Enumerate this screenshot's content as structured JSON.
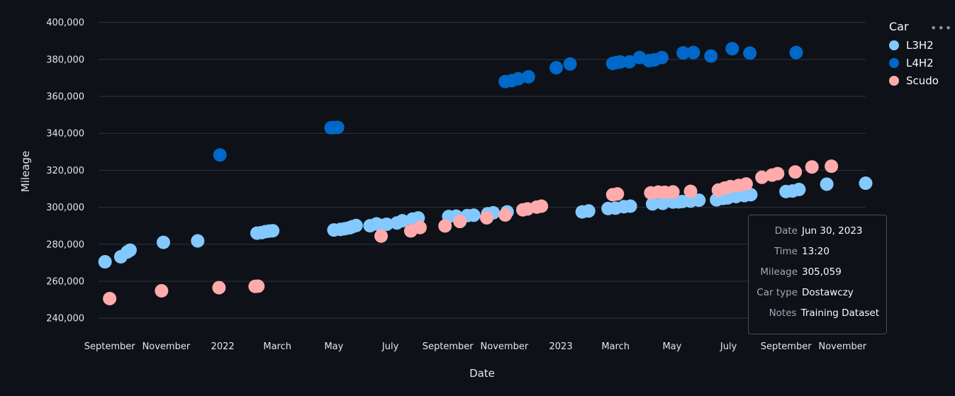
{
  "chart_data": {
    "type": "scatter",
    "xlabel": "Date",
    "ylabel": "Mileage",
    "ylim": [
      232000,
      406000
    ],
    "y_ticks": [
      240000,
      260000,
      280000,
      300000,
      320000,
      340000,
      360000,
      380000,
      400000
    ],
    "y_tick_labels": [
      "240,000",
      "260,000",
      "280,000",
      "300,000",
      "320,000",
      "340,000",
      "360,000",
      "380,000",
      "400,000"
    ],
    "x_range": [
      "2021-08-20",
      "2023-11-26"
    ],
    "x_ticks": [
      {
        "date": "2021-09-01",
        "label": "September"
      },
      {
        "date": "2021-11-01",
        "label": "November"
      },
      {
        "date": "2022-01-01",
        "label": "2022"
      },
      {
        "date": "2022-03-01",
        "label": "March"
      },
      {
        "date": "2022-05-01",
        "label": "May"
      },
      {
        "date": "2022-07-01",
        "label": "July"
      },
      {
        "date": "2022-09-01",
        "label": "September"
      },
      {
        "date": "2022-11-01",
        "label": "November"
      },
      {
        "date": "2023-01-01",
        "label": "2023"
      },
      {
        "date": "2023-03-01",
        "label": "March"
      },
      {
        "date": "2023-05-01",
        "label": "May"
      },
      {
        "date": "2023-07-01",
        "label": "July"
      },
      {
        "date": "2023-09-01",
        "label": "September"
      },
      {
        "date": "2023-11-01",
        "label": "November"
      }
    ],
    "grid": true,
    "legend_title": "Car",
    "legend_position": "top-right",
    "series": [
      {
        "name": "L3H2",
        "color": "#83c9ff",
        "points": [
          [
            "2021-08-27",
            270500
          ],
          [
            "2021-09-13",
            273200
          ],
          [
            "2021-09-20",
            275800
          ],
          [
            "2021-09-23",
            276800
          ],
          [
            "2021-10-29",
            281000
          ],
          [
            "2021-12-05",
            281800
          ],
          [
            "2022-02-07",
            286000
          ],
          [
            "2022-02-12",
            286300
          ],
          [
            "2022-02-16",
            286800
          ],
          [
            "2022-02-20",
            287100
          ],
          [
            "2022-02-24",
            287300
          ],
          [
            "2022-05-01",
            287700
          ],
          [
            "2022-05-08",
            288000
          ],
          [
            "2022-05-13",
            288400
          ],
          [
            "2022-05-18",
            288900
          ],
          [
            "2022-05-21",
            289500
          ],
          [
            "2022-05-25",
            290100
          ],
          [
            "2022-06-09",
            290000
          ],
          [
            "2022-06-16",
            291000
          ],
          [
            "2022-06-20",
            290200
          ],
          [
            "2022-06-27",
            290800
          ],
          [
            "2022-07-08",
            291500
          ],
          [
            "2022-07-14",
            292700
          ],
          [
            "2022-07-25",
            293600
          ],
          [
            "2022-07-31",
            294200
          ],
          [
            "2022-09-02",
            295000
          ],
          [
            "2022-09-10",
            295200
          ],
          [
            "2022-09-22",
            295500
          ],
          [
            "2022-09-29",
            295700
          ],
          [
            "2022-10-14",
            296500
          ],
          [
            "2022-10-20",
            297000
          ],
          [
            "2022-11-04",
            297500
          ],
          [
            "2023-01-24",
            297500
          ],
          [
            "2023-01-31",
            298000
          ],
          [
            "2023-02-21",
            299300
          ],
          [
            "2023-03-01",
            299500
          ],
          [
            "2023-03-10",
            300300
          ],
          [
            "2023-03-17",
            300600
          ],
          [
            "2023-04-10",
            301800
          ],
          [
            "2023-04-21",
            302100
          ],
          [
            "2023-05-02",
            302800
          ],
          [
            "2023-05-08",
            302900
          ],
          [
            "2023-05-12",
            303100
          ],
          [
            "2023-05-21",
            303300
          ],
          [
            "2023-05-30",
            303800
          ],
          [
            "2023-06-18",
            304000
          ],
          [
            "2023-06-25",
            304800
          ],
          [
            "2023-06-30",
            305059
          ],
          [
            "2023-07-09",
            305800
          ],
          [
            "2023-07-18",
            306300
          ],
          [
            "2023-07-25",
            306800
          ],
          [
            "2023-09-01",
            308500
          ],
          [
            "2023-09-08",
            308800
          ],
          [
            "2023-09-15",
            309600
          ],
          [
            "2023-10-15",
            312500
          ],
          [
            "2023-11-26",
            313000
          ]
        ]
      },
      {
        "name": "L4H2",
        "color": "#0068c9",
        "points": [
          [
            "2021-12-29",
            328300
          ],
          [
            "2022-04-28",
            343000
          ],
          [
            "2022-05-01",
            343100
          ],
          [
            "2022-05-05",
            343200
          ],
          [
            "2022-11-02",
            368000
          ],
          [
            "2022-11-09",
            368500
          ],
          [
            "2022-11-16",
            369500
          ],
          [
            "2022-11-27",
            370600
          ],
          [
            "2022-12-27",
            375500
          ],
          [
            "2023-01-11",
            377500
          ],
          [
            "2023-02-26",
            377800
          ],
          [
            "2023-03-02",
            378300
          ],
          [
            "2023-03-06",
            378600
          ],
          [
            "2023-03-16",
            378700
          ],
          [
            "2023-03-27",
            381000
          ],
          [
            "2023-04-06",
            379300
          ],
          [
            "2023-04-12",
            379700
          ],
          [
            "2023-04-20",
            381000
          ],
          [
            "2023-05-13",
            383500
          ],
          [
            "2023-05-24",
            383700
          ],
          [
            "2023-06-12",
            381800
          ],
          [
            "2023-07-05",
            385800
          ],
          [
            "2023-07-24",
            383400
          ],
          [
            "2023-09-12",
            383700
          ]
        ]
      },
      {
        "name": "Scudo",
        "color": "#ffabab",
        "points": [
          [
            "2021-09-01",
            250600
          ],
          [
            "2021-10-27",
            254800
          ],
          [
            "2021-12-28",
            256500
          ],
          [
            "2022-02-05",
            257200
          ],
          [
            "2022-02-08",
            257300
          ],
          [
            "2022-06-21",
            284400
          ],
          [
            "2022-07-23",
            287200
          ],
          [
            "2022-08-02",
            289000
          ],
          [
            "2022-08-29",
            289900
          ],
          [
            "2022-09-14",
            292300
          ],
          [
            "2022-10-13",
            294300
          ],
          [
            "2022-11-02",
            295800
          ],
          [
            "2022-11-21",
            298600
          ],
          [
            "2022-11-26",
            299100
          ],
          [
            "2022-12-06",
            300100
          ],
          [
            "2022-12-11",
            300600
          ],
          [
            "2023-02-26",
            306800
          ],
          [
            "2023-03-03",
            307200
          ],
          [
            "2023-04-08",
            307800
          ],
          [
            "2023-04-16",
            308200
          ],
          [
            "2023-04-23",
            308100
          ],
          [
            "2023-05-02",
            308300
          ],
          [
            "2023-05-21",
            308600
          ],
          [
            "2023-06-20",
            309300
          ],
          [
            "2023-06-27",
            310400
          ],
          [
            "2023-07-03",
            311200
          ],
          [
            "2023-07-12",
            311800
          ],
          [
            "2023-07-20",
            312600
          ],
          [
            "2023-08-06",
            316200
          ],
          [
            "2023-08-17",
            317400
          ],
          [
            "2023-08-23",
            318200
          ],
          [
            "2023-09-11",
            319100
          ],
          [
            "2023-09-29",
            321800
          ],
          [
            "2023-10-20",
            322200
          ]
        ]
      }
    ],
    "tooltip": {
      "rows": [
        {
          "key": "Date",
          "value": "Jun 30, 2023"
        },
        {
          "key": "Time",
          "value": "13:20"
        },
        {
          "key": "Mileage",
          "value": "305,059"
        },
        {
          "key": "Car type",
          "value": "Dostawczy"
        },
        {
          "key": "Notes",
          "value": "Training Dataset"
        }
      ]
    }
  },
  "toolbar": {
    "more_icon": "more-horizontal-icon"
  }
}
